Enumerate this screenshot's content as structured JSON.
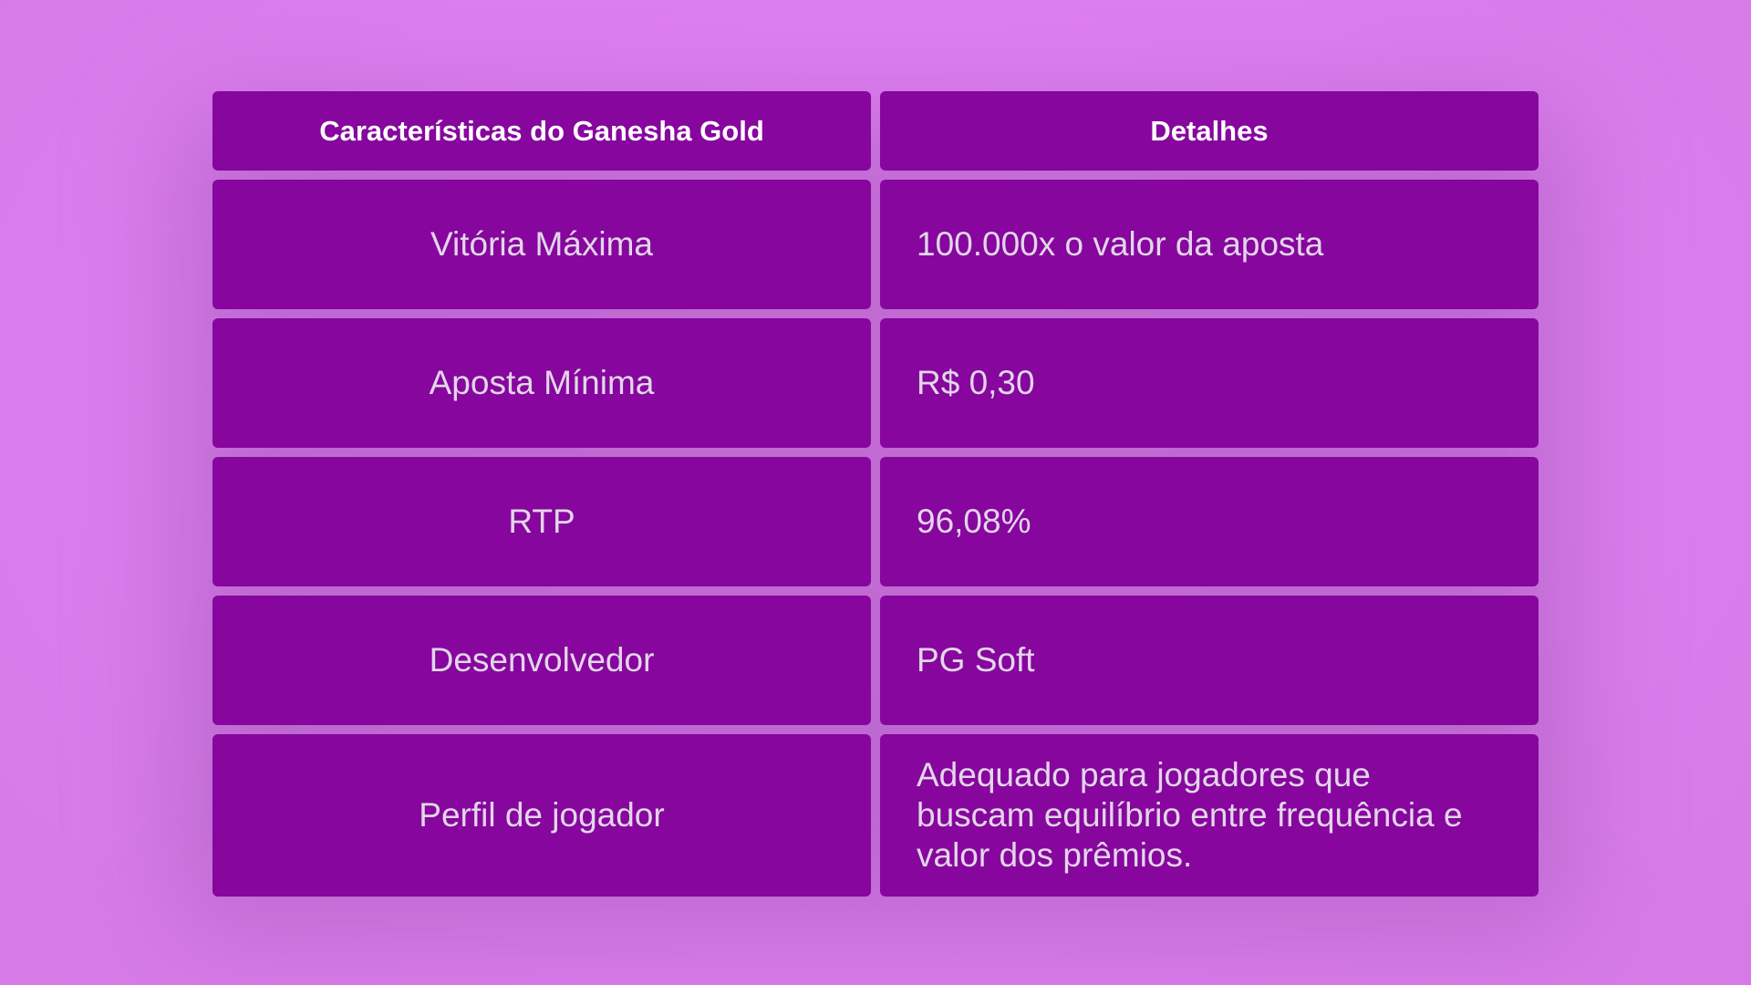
{
  "table": {
    "headers": [
      "Características do Ganesha Gold",
      "Detalhes"
    ],
    "rows": [
      {
        "feature": "Vitória Máxima",
        "detail": "100.000x o valor da aposta"
      },
      {
        "feature": "Aposta Mínima",
        "detail": "R$ 0,30"
      },
      {
        "feature": "RTP",
        "detail": "96,08%"
      },
      {
        "feature": "Desenvolvedor",
        "detail": "PG Soft"
      },
      {
        "feature": "Perfil de jogador",
        "detail": "Adequado para jogadores que buscam equilíbrio entre frequência e valor dos prêmios."
      }
    ]
  },
  "colors": {
    "cell": "#86069e",
    "background": "#e07ff0",
    "header_text": "#ffffff",
    "body_text": "#e3d6e9"
  }
}
